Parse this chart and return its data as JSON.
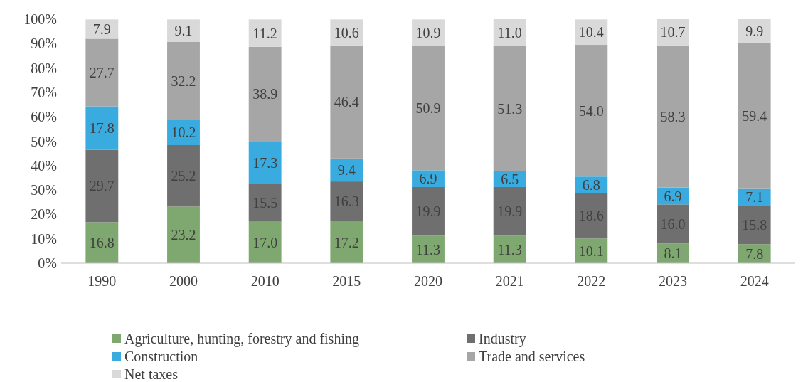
{
  "chart_data": {
    "type": "bar",
    "stacked": true,
    "categories": [
      "1990",
      "2000",
      "2010",
      "2015",
      "2020",
      "2021",
      "2022",
      "2023",
      "2024"
    ],
    "series": [
      {
        "name": "Agriculture, hunting, forestry and fishing",
        "color": "#7fa870",
        "values": [
          16.8,
          23.2,
          17.0,
          17.2,
          11.3,
          11.3,
          10.1,
          8.1,
          7.8
        ]
      },
      {
        "name": "Industry",
        "color": "#6f6f6f",
        "values": [
          29.7,
          25.2,
          15.5,
          16.3,
          19.9,
          19.9,
          18.6,
          16.0,
          15.8
        ]
      },
      {
        "name": "Construction",
        "color": "#3aabdf",
        "values": [
          17.8,
          10.2,
          17.3,
          9.4,
          6.9,
          6.5,
          6.8,
          6.9,
          7.1
        ]
      },
      {
        "name": "Trade and services",
        "color": "#a6a6a6",
        "values": [
          27.7,
          32.2,
          38.9,
          46.4,
          50.9,
          51.3,
          54.0,
          58.3,
          59.4
        ]
      },
      {
        "name": "Net taxes",
        "color": "#d9d9d9",
        "values": [
          7.9,
          9.1,
          11.2,
          10.6,
          10.9,
          11.0,
          10.4,
          10.7,
          9.9
        ]
      }
    ],
    "value_labels": [
      [
        "16.8",
        "23.2",
        "17.0",
        "17.2",
        "11.3",
        "11.3",
        "10.1",
        "8.1",
        "7.8"
      ],
      [
        "29.7",
        "25.2",
        "15.5",
        "16.3",
        "19.9",
        "19.9",
        "18.6",
        "16.0",
        "15.8"
      ],
      [
        "17.8",
        "10.2",
        "17.3",
        "9.4",
        "6.9",
        "6.5",
        "6.8",
        "6.9",
        "7.1"
      ],
      [
        "27.7",
        "32.2",
        "38.9",
        "46.4",
        "50.9",
        "51.3",
        "54.0",
        "58.3",
        "59.4"
      ],
      [
        "7.9",
        "9.1",
        "11.2",
        "10.6",
        "10.9",
        "11.0",
        "10.4",
        "10.7",
        "9.9"
      ]
    ],
    "ylim": [
      0,
      100
    ],
    "yticks": [
      {
        "value": 0,
        "label": "0%"
      },
      {
        "value": 10,
        "label": "10%"
      },
      {
        "value": 20,
        "label": "20%"
      },
      {
        "value": 30,
        "label": "30%"
      },
      {
        "value": 40,
        "label": "40%"
      },
      {
        "value": 50,
        "label": "50%"
      },
      {
        "value": 60,
        "label": "60%"
      },
      {
        "value": 70,
        "label": "70%"
      },
      {
        "value": 80,
        "label": "80%"
      },
      {
        "value": 90,
        "label": "90%"
      },
      {
        "value": 100,
        "label": "100%"
      }
    ],
    "grid": false,
    "legend": "bottom"
  }
}
